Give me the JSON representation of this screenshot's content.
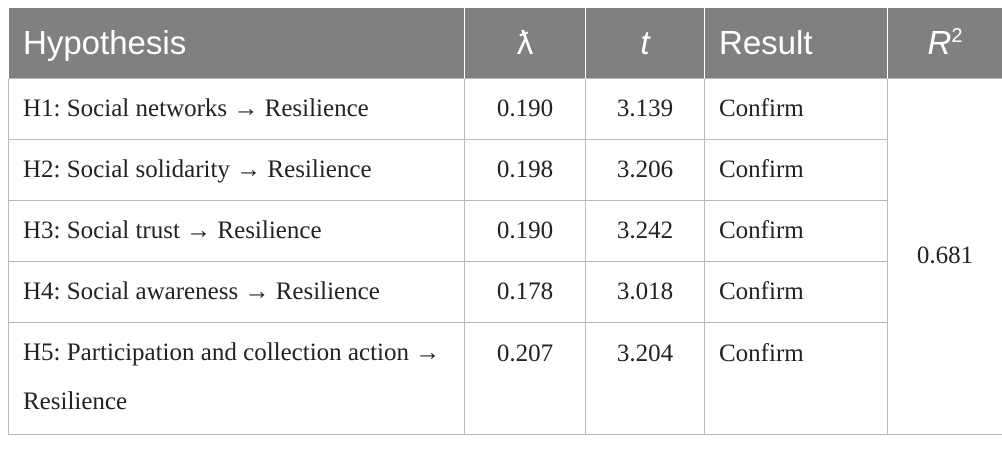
{
  "header": {
    "hypothesis": "Hypothesis",
    "lambda": "ƛ",
    "t": "t",
    "result": "Result",
    "r2_base": "R",
    "r2_sup": "2"
  },
  "rows": [
    {
      "hypothesis": "H1: Social networks → Resilience",
      "lambda": "0.190",
      "t": "3.139",
      "result": "Confirm"
    },
    {
      "hypothesis": "H2: Social solidarity → Resilience",
      "lambda": "0.198",
      "t": "3.206",
      "result": "Confirm"
    },
    {
      "hypothesis": "H3: Social trust → Resilience",
      "lambda": "0.190",
      "t": "3.242",
      "result": "Confirm"
    },
    {
      "hypothesis": "H4: Social awareness → Resilience",
      "lambda": "0.178",
      "t": "3.018",
      "result": "Confirm"
    },
    {
      "hypothesis": "H5: Participation and collection action → Resilience",
      "lambda": "0.207",
      "t": "3.204",
      "result": "Confirm"
    }
  ],
  "r2_value": "0.681"
}
